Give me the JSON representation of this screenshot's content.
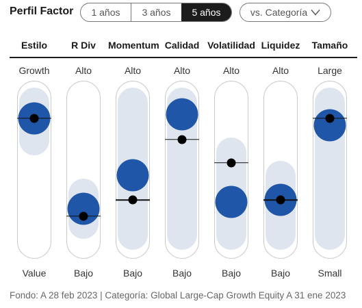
{
  "title": "Perfil Factor",
  "periods": [
    {
      "label": "1 años",
      "active": false
    },
    {
      "label": "3 años",
      "active": false
    },
    {
      "label": "5 años",
      "active": true
    }
  ],
  "comparison": {
    "label": "vs. Categoría",
    "icon": "chevron-down-icon"
  },
  "colors": {
    "fund": "#1f56a8",
    "range": "#dfe5ef",
    "category": "#000000"
  },
  "factors": [
    {
      "name": "Estilo",
      "top": "Growth",
      "bottom": "Value",
      "fund": 0.79,
      "category": 0.79,
      "range": [
        0.58,
        0.96
      ]
    },
    {
      "name": "R Div",
      "top": "Alto",
      "bottom": "Bajo",
      "fund": 0.28,
      "category": 0.24,
      "range": [
        0.11,
        0.45
      ]
    },
    {
      "name": "Momentum",
      "top": "Alto",
      "bottom": "Bajo",
      "fund": 0.47,
      "category": 0.33,
      "range": [
        0.05,
        0.96
      ]
    },
    {
      "name": "Calidad",
      "top": "Alto",
      "bottom": "Bajo",
      "fund": 0.81,
      "category": 0.67,
      "range": [
        0.05,
        0.96
      ]
    },
    {
      "name": "Volatilidad",
      "top": "Alto",
      "bottom": "Bajo",
      "fund": 0.32,
      "category": 0.54,
      "range": [
        0.05,
        0.68
      ]
    },
    {
      "name": "Liquidez",
      "top": "Alto",
      "bottom": "Bajo",
      "fund": 0.33,
      "category": 0.33,
      "range": [
        0.05,
        0.55
      ]
    },
    {
      "name": "Tamaño",
      "top": "Large",
      "bottom": "Small",
      "fund": 0.75,
      "category": 0.79,
      "range": [
        0.05,
        0.96
      ]
    }
  ],
  "footer": "Fondo: A 28 feb 2023 | Categoría: Global Large-Cap Growth Equity A 31 ene 2023"
}
